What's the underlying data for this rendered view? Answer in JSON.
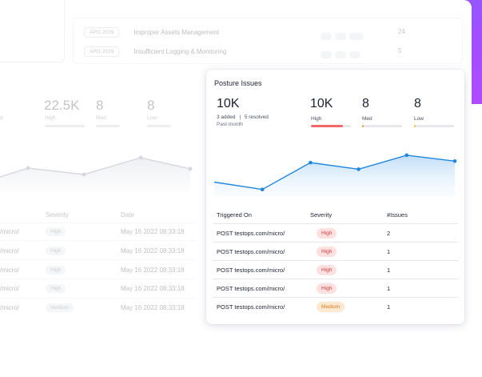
{
  "background_dashboard": {
    "api_rows": [
      {
        "code": "API1:2019",
        "label": "Improper Assets Management",
        "count": "24"
      },
      {
        "code": "API1:2019",
        "label": "Insufficient Logging & Monitoring",
        "count": "5"
      }
    ],
    "stats": [
      {
        "value": "22.5K",
        "label": "High"
      },
      {
        "value": "8",
        "label": "Med"
      },
      {
        "value": "8",
        "label": "Low"
      }
    ],
    "left_cut_label": "d",
    "table": {
      "headers": [
        "Severity",
        "Date"
      ],
      "rows": [
        {
          "path": "/micro/",
          "severity": "High",
          "date": "May 16 2022 08:33:18"
        },
        {
          "path": "/micro/",
          "severity": "High",
          "date": "May 16 2022 08:33:18"
        },
        {
          "path": "/micro/",
          "severity": "High",
          "date": "May 16 2022 08:33:18"
        },
        {
          "path": "/micro/",
          "severity": "High",
          "date": "May 16 2022 08:33:18"
        },
        {
          "path": "/micro/",
          "severity": "Medium",
          "date": "May 16 2022 08:33:18"
        }
      ]
    }
  },
  "card": {
    "title": "Posture Issues",
    "total": {
      "value": "10K",
      "added": "3 added",
      "separator": "|",
      "resolved": "5 resolved",
      "period": "Past month"
    },
    "stats": [
      {
        "value": "10K",
        "label": "High",
        "fill": 0.8,
        "color": "#f06a6a"
      },
      {
        "value": "8",
        "label": "Med",
        "fill": 0.03,
        "color": "#f6a14a"
      },
      {
        "value": "8",
        "label": "Low",
        "fill": 0.03,
        "color": "#f6c24a"
      }
    ],
    "table": {
      "headers": {
        "triggered_on": "Triggered On",
        "severity": "Severity",
        "issues": "#Issues"
      },
      "rows": [
        {
          "triggered_on": "POST testops.com/micro/",
          "severity": "High",
          "issues": "2"
        },
        {
          "triggered_on": "POST testops.com/micro/",
          "severity": "High",
          "issues": "1"
        },
        {
          "triggered_on": "POST testops.com/micro/",
          "severity": "High",
          "issues": "1"
        },
        {
          "triggered_on": "POST testops.com/micro/",
          "severity": "High",
          "issues": "1"
        },
        {
          "triggered_on": "POST testops.com/micro/",
          "severity": "Medium",
          "issues": "1"
        }
      ]
    },
    "trend": [
      0.25,
      0.05,
      0.78,
      0.6,
      0.98,
      0.82
    ]
  },
  "colors": {
    "accent_blue": "#3a8dff",
    "line_blue": "#1f86e0",
    "purple": "#a24dff",
    "high_bg": "#fde0e0",
    "high_text": "#d23c3c",
    "medium_bg": "#fde9d2",
    "medium_text": "#d97a1c"
  }
}
